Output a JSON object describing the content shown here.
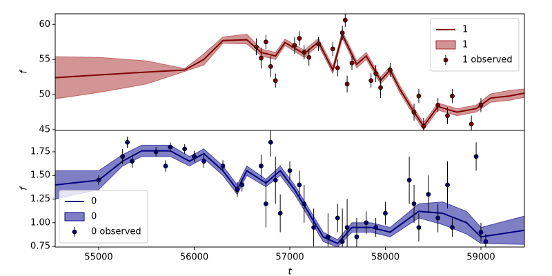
{
  "chart_data": [
    {
      "type": "line",
      "ylabel": "f",
      "xlim": [
        54545,
        59455
      ],
      "ylim": [
        44.9,
        61.5
      ],
      "yticks": [
        45,
        50,
        55,
        60
      ],
      "legend": "upper right",
      "series": [
        {
          "name": "1",
          "style": "line",
          "color": "#7f0000",
          "x": [
            54545,
            55000,
            55500,
            55900,
            56100,
            56300,
            56550,
            56700,
            56850,
            56950,
            57150,
            57300,
            57450,
            57550,
            57700,
            57800,
            57950,
            58050,
            58150,
            58300,
            58400,
            58550,
            58750,
            58950,
            59100,
            59300,
            59455
          ],
          "values": [
            52.4,
            52.8,
            53.2,
            53.5,
            55.0,
            57.7,
            57.8,
            56.0,
            55.5,
            57.4,
            55.8,
            57.5,
            53.5,
            58.5,
            54.3,
            55.5,
            52.0,
            53.5,
            50.8,
            47.5,
            45.5,
            48.3,
            47.5,
            48.0,
            49.5,
            49.8,
            50.2
          ]
        },
        {
          "name": "1",
          "style": "band",
          "color": "#a52a2a",
          "x": [
            54545,
            55000,
            55500,
            55900,
            56100,
            56300,
            56550,
            56700,
            56850,
            56950,
            57150,
            57300,
            57450,
            57550,
            57700,
            57800,
            57950,
            58050,
            58150,
            58300,
            58400,
            58550,
            58750,
            58950,
            59100,
            59300,
            59455
          ],
          "lower": [
            49.4,
            50.3,
            51.5,
            53.3,
            54.2,
            57.3,
            57.2,
            55.5,
            55.0,
            57.0,
            55.3,
            57.0,
            53.0,
            58.0,
            53.8,
            55.0,
            51.5,
            53.0,
            50.3,
            47.0,
            45.0,
            47.8,
            47.0,
            47.5,
            48.9,
            49.2,
            49.6
          ],
          "upper": [
            55.4,
            55.3,
            54.8,
            53.7,
            55.8,
            58.2,
            58.6,
            56.5,
            56.0,
            57.9,
            56.3,
            58.0,
            54.0,
            59.0,
            54.8,
            56.0,
            52.5,
            54.0,
            51.3,
            48.0,
            46.0,
            48.8,
            48.0,
            48.5,
            50.1,
            50.6,
            50.8
          ]
        },
        {
          "name": "1 observed",
          "style": "errorbar",
          "color": "#7f0000",
          "x": [
            56650,
            56700,
            56750,
            56800,
            56850,
            57050,
            57100,
            57150,
            57200,
            57300,
            57450,
            57500,
            57550,
            57580,
            57600,
            57650,
            57850,
            57900,
            57950,
            58050,
            58300,
            58350,
            58400,
            58550,
            58650,
            58700,
            58900,
            59000
          ],
          "values": [
            56.8,
            55.2,
            57.5,
            54.0,
            52.0,
            57.0,
            58.0,
            56.0,
            55.3,
            57.2,
            56.5,
            53.8,
            58.8,
            60.6,
            51.5,
            54.5,
            52.0,
            53.0,
            51.0,
            53.5,
            47.5,
            49.8,
            45.5,
            48.5,
            47.0,
            49.8,
            45.8,
            48.5
          ],
          "errors": [
            1.2,
            1.5,
            1.0,
            1.5,
            1.0,
            1.2,
            1.0,
            1.0,
            1.2,
            1.0,
            1.0,
            1.2,
            1.0,
            1.0,
            1.2,
            1.0,
            1.0,
            1.2,
            1.5,
            1.0,
            1.2,
            1.0,
            1.2,
            1.0,
            1.2,
            1.0,
            1.2,
            1.0
          ]
        }
      ]
    },
    {
      "type": "line",
      "ylabel": "f",
      "xlabel": "t",
      "xlim": [
        54545,
        59455
      ],
      "ylim": [
        0.743,
        1.976
      ],
      "xticks": [
        55000,
        56000,
        57000,
        58000,
        59000
      ],
      "yticks": [
        0.75,
        {
          "value": 1,
          "label": "1.00"
        },
        1.25,
        {
          "value": 1.5,
          "label": "1.50"
        },
        1.75
      ],
      "legend": "lower left",
      "series": [
        {
          "name": "0",
          "style": "line",
          "color": "#00007f",
          "x": [
            54545,
            55000,
            55250,
            55450,
            55750,
            55950,
            56100,
            56300,
            56450,
            56550,
            56750,
            56900,
            57050,
            57200,
            57350,
            57500,
            57650,
            57850,
            58050,
            58350,
            58600,
            58850,
            59000,
            59455
          ],
          "values": [
            1.4,
            1.45,
            1.65,
            1.76,
            1.76,
            1.65,
            1.73,
            1.55,
            1.35,
            1.55,
            1.42,
            1.55,
            1.35,
            1.1,
            0.85,
            0.78,
            0.95,
            0.95,
            0.9,
            1.12,
            1.1,
            1.0,
            0.85,
            0.92
          ]
        },
        {
          "name": "0",
          "style": "band",
          "color": "#00008b",
          "x": [
            54545,
            55000,
            55250,
            55450,
            55750,
            55950,
            56100,
            56300,
            56450,
            56550,
            56750,
            56900,
            57050,
            57200,
            57350,
            57500,
            57650,
            57850,
            58050,
            58350,
            58600,
            58850,
            59000,
            59455
          ],
          "lower": [
            1.25,
            1.35,
            1.6,
            1.7,
            1.7,
            1.6,
            1.68,
            1.5,
            1.3,
            1.5,
            1.38,
            1.5,
            1.3,
            1.05,
            0.8,
            0.74,
            0.9,
            0.9,
            0.85,
            1.05,
            0.98,
            0.88,
            0.78,
            0.77
          ],
          "upper": [
            1.55,
            1.55,
            1.72,
            1.82,
            1.82,
            1.7,
            1.78,
            1.6,
            1.4,
            1.6,
            1.46,
            1.6,
            1.4,
            1.15,
            0.9,
            0.82,
            1.0,
            1.0,
            0.95,
            1.2,
            1.22,
            1.12,
            0.95,
            1.07
          ]
        },
        {
          "name": "0 observed",
          "style": "errorbar",
          "color": "#00007f",
          "x": [
            55000,
            55250,
            55300,
            55350,
            55600,
            55700,
            55750,
            55900,
            56000,
            56100,
            56300,
            56450,
            56500,
            56700,
            56750,
            56800,
            56850,
            56900,
            57000,
            57100,
            57150,
            57250,
            57400,
            57500,
            57550,
            57600,
            57700,
            57800,
            57900,
            58000,
            58250,
            58300,
            58350,
            58450,
            58550,
            58650,
            58700,
            58950,
            59000,
            59050
          ],
          "values": [
            1.45,
            1.7,
            1.85,
            1.65,
            1.75,
            1.6,
            1.8,
            1.78,
            1.7,
            1.65,
            1.6,
            1.35,
            1.4,
            1.6,
            1.2,
            1.85,
            1.45,
            1.1,
            1.55,
            1.4,
            1.2,
            0.95,
            0.85,
            1.05,
            0.8,
            0.95,
            0.85,
            1.0,
            0.95,
            1.1,
            1.45,
            1.2,
            0.95,
            1.3,
            1.05,
            1.4,
            0.95,
            1.7,
            0.9,
            0.8
          ],
          "errors": [
            0.05,
            0.08,
            0.06,
            0.07,
            0.05,
            0.06,
            0.05,
            0.05,
            0.06,
            0.07,
            0.06,
            0.08,
            0.07,
            0.12,
            0.25,
            0.15,
            0.25,
            0.2,
            0.1,
            0.15,
            0.2,
            0.2,
            0.25,
            0.15,
            0.35,
            0.3,
            0.2,
            0.12,
            0.1,
            0.12,
            0.25,
            0.2,
            0.15,
            0.2,
            0.15,
            0.25,
            0.1,
            0.15,
            0.1,
            0.08
          ]
        }
      ]
    }
  ]
}
